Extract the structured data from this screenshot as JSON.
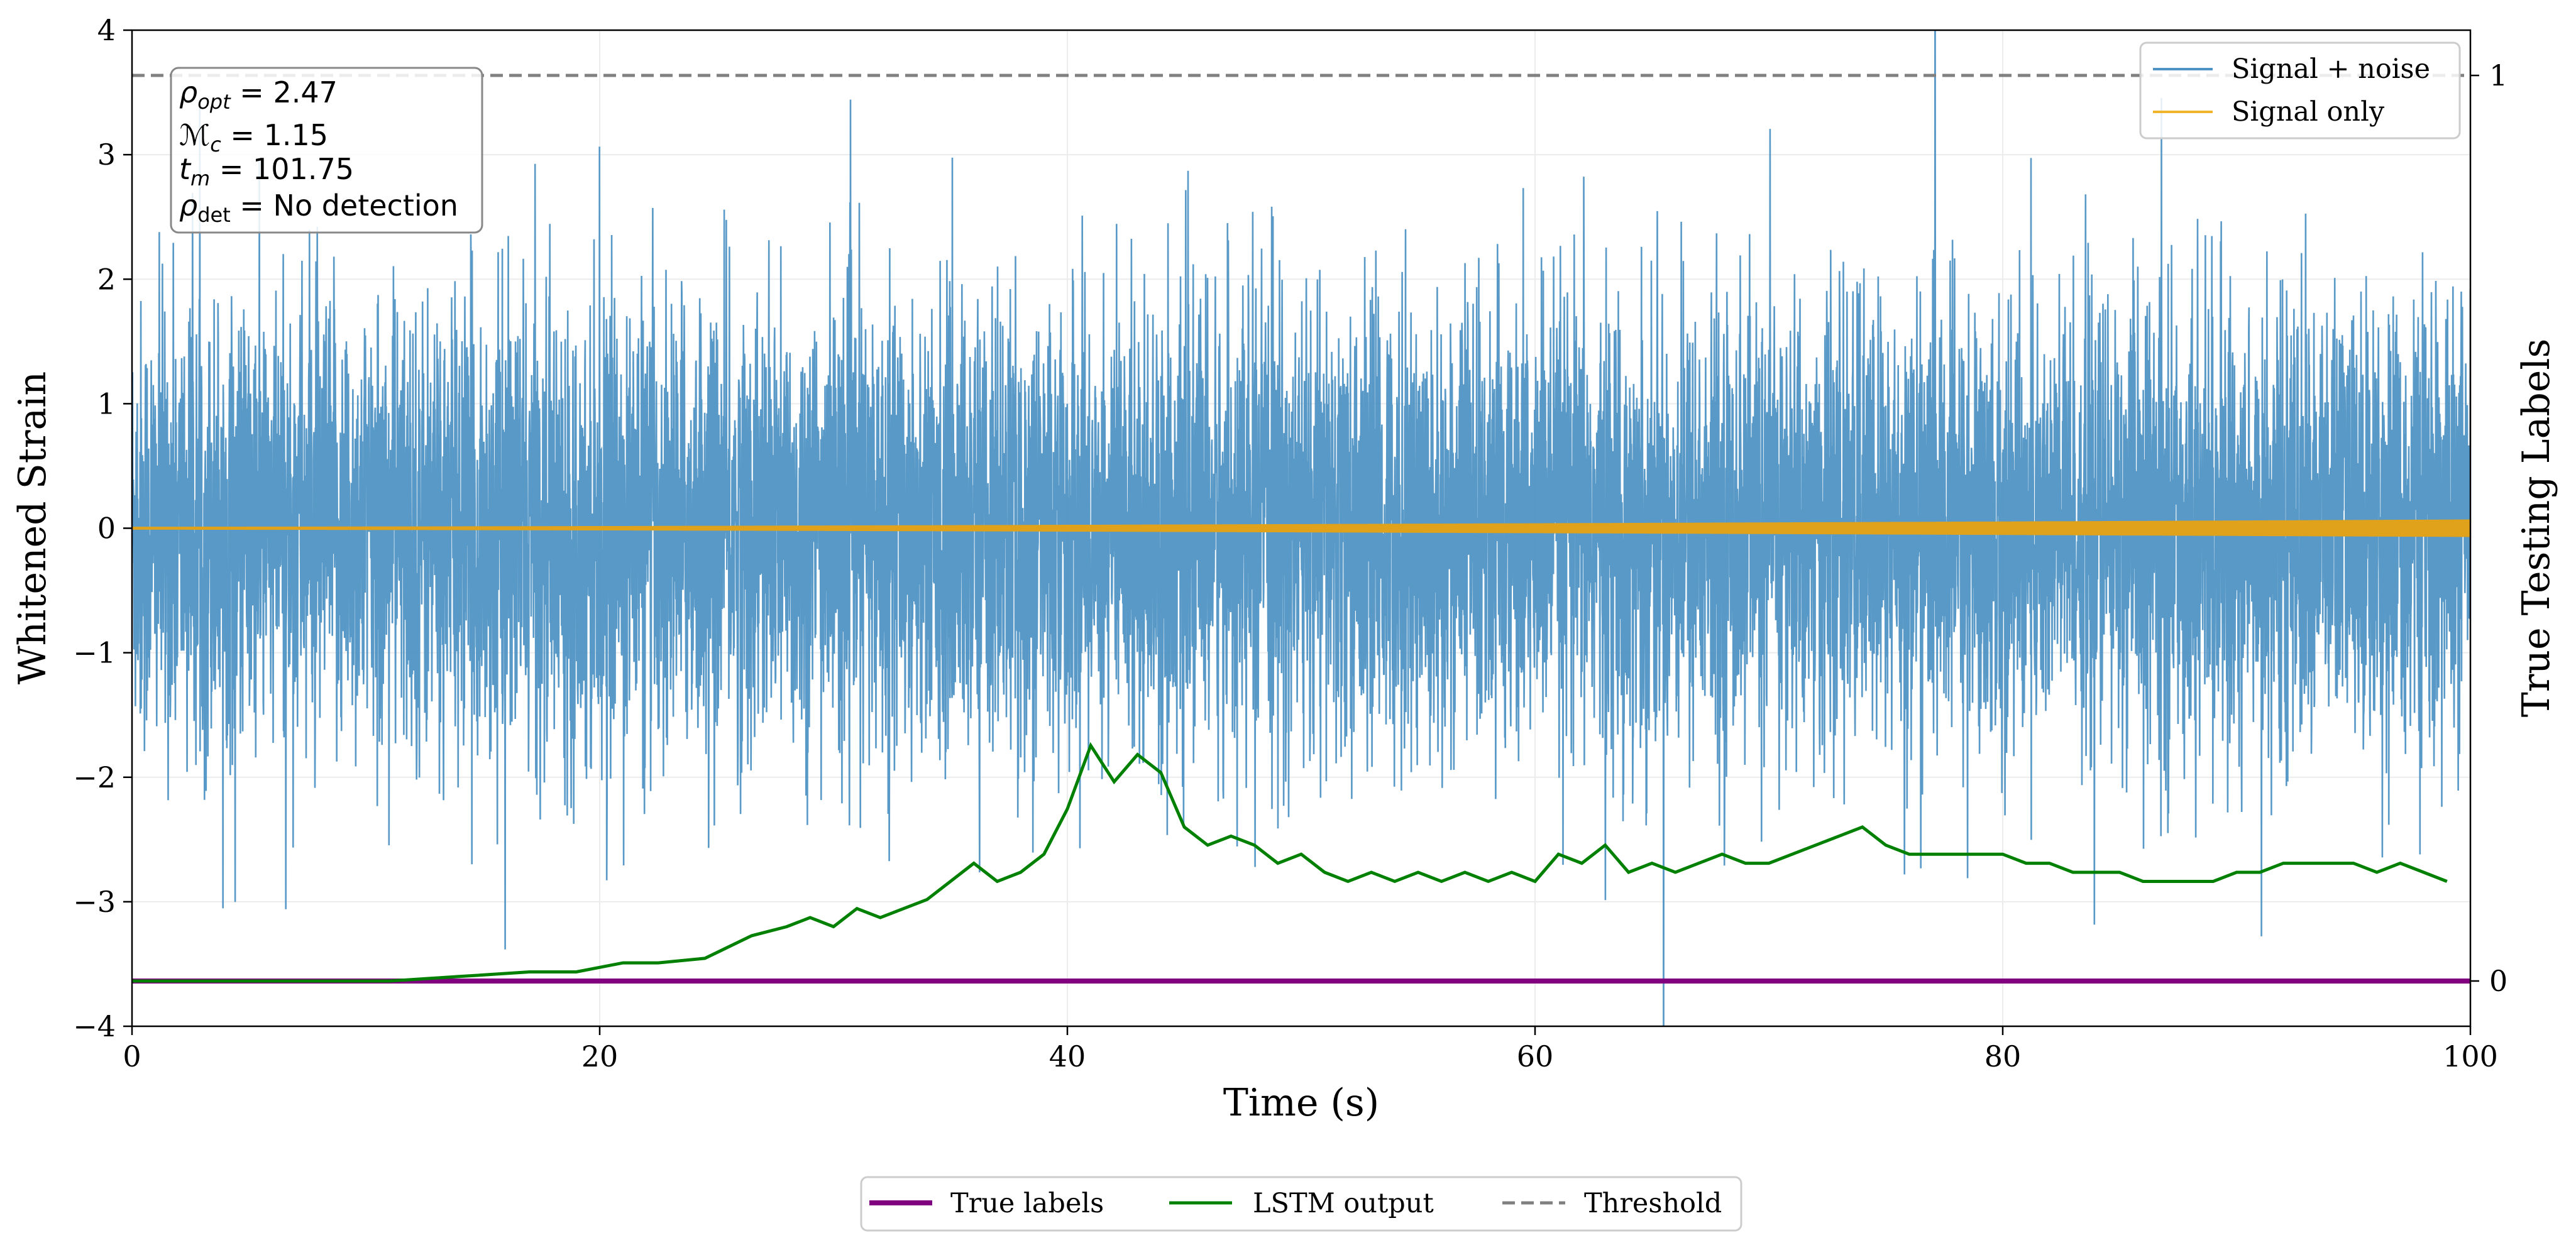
{
  "chart_data": {
    "type": "line",
    "xlabel": "Time (s)",
    "ylabel": "Whitened Strain",
    "y2label": "True Testing Labels",
    "xlim": [
      0,
      100
    ],
    "ylim": [
      -4,
      4
    ],
    "y2lim": [
      -0.05,
      1.05
    ],
    "xticks": [
      0,
      20,
      40,
      60,
      80,
      100
    ],
    "xtick_labels": [
      "0",
      "20",
      "40",
      "60",
      "80",
      "100"
    ],
    "yticks": [
      4,
      3,
      2,
      1,
      0,
      -1,
      -2,
      -3,
      -4
    ],
    "ytick_labels": [
      "4",
      "3",
      "2",
      "1",
      "0",
      "−1",
      "−2",
      "−3",
      "−4"
    ],
    "y2ticks": [
      1,
      0
    ],
    "y2tick_labels": [
      "1",
      "0"
    ],
    "grid": true,
    "series": [
      {
        "name": "Signal + noise",
        "color": "#4f93c4",
        "axis": "left",
        "description_std": 0.9
      },
      {
        "name": "Signal only",
        "color": "#e0a21a",
        "axis": "left",
        "amplitude_start": 0.01,
        "amplitude_end": 0.07
      }
    ],
    "right_series": [
      {
        "name": "True labels",
        "color": "#800080",
        "x": [
          0,
          100
        ],
        "values": [
          0,
          0
        ]
      },
      {
        "name": "LSTM output",
        "color": "#008000",
        "x": [
          0,
          11,
          14,
          17,
          19,
          21,
          22.5,
          24.5,
          26.5,
          28,
          29,
          30,
          31,
          32,
          33,
          34,
          35,
          36,
          37,
          38,
          39,
          40,
          41,
          42,
          43,
          44,
          45,
          46,
          47,
          48,
          49,
          50,
          51,
          52,
          53,
          54,
          55,
          56,
          57,
          58,
          59,
          60,
          61,
          62,
          63,
          64,
          65,
          66,
          67,
          68,
          69,
          70,
          71,
          72,
          73,
          74,
          75,
          76,
          77,
          78,
          79,
          80,
          81,
          82,
          83,
          84,
          85,
          86,
          87,
          88,
          89,
          90,
          91,
          92,
          93,
          94,
          95,
          96,
          97,
          98,
          99
        ],
        "values": [
          0,
          0,
          0.005,
          0.01,
          0.01,
          0.02,
          0.02,
          0.025,
          0.05,
          0.06,
          0.07,
          0.06,
          0.08,
          0.07,
          0.08,
          0.09,
          0.11,
          0.13,
          0.11,
          0.12,
          0.14,
          0.19,
          0.26,
          0.22,
          0.25,
          0.23,
          0.17,
          0.15,
          0.16,
          0.15,
          0.13,
          0.14,
          0.12,
          0.11,
          0.12,
          0.11,
          0.12,
          0.11,
          0.12,
          0.11,
          0.12,
          0.11,
          0.14,
          0.13,
          0.15,
          0.12,
          0.13,
          0.12,
          0.13,
          0.14,
          0.13,
          0.13,
          0.14,
          0.15,
          0.16,
          0.17,
          0.15,
          0.14,
          0.14,
          0.14,
          0.14,
          0.14,
          0.13,
          0.13,
          0.12,
          0.12,
          0.12,
          0.11,
          0.11,
          0.11,
          0.11,
          0.12,
          0.12,
          0.13,
          0.13,
          0.13,
          0.13,
          0.12,
          0.13,
          0.12,
          0.11
        ]
      },
      {
        "name": "Threshold",
        "color": "#808080",
        "dash": true,
        "x": [
          0,
          100
        ],
        "values": [
          1,
          1
        ]
      }
    ],
    "legend_top": [
      {
        "label": "Signal + noise",
        "color": "#4f93c4"
      },
      {
        "label": "Signal only",
        "color": "#f0b52a"
      }
    ],
    "legend_bottom": [
      {
        "label": "True labels",
        "color": "#800080",
        "dash": false
      },
      {
        "label": "LSTM output",
        "color": "#008000",
        "dash": false
      },
      {
        "label": "Threshold",
        "color": "#808080",
        "dash": true
      }
    ],
    "annotation": {
      "rho_opt": "2.47",
      "mc": "1.15",
      "tm": "101.75",
      "rho_det": "No detection"
    }
  }
}
